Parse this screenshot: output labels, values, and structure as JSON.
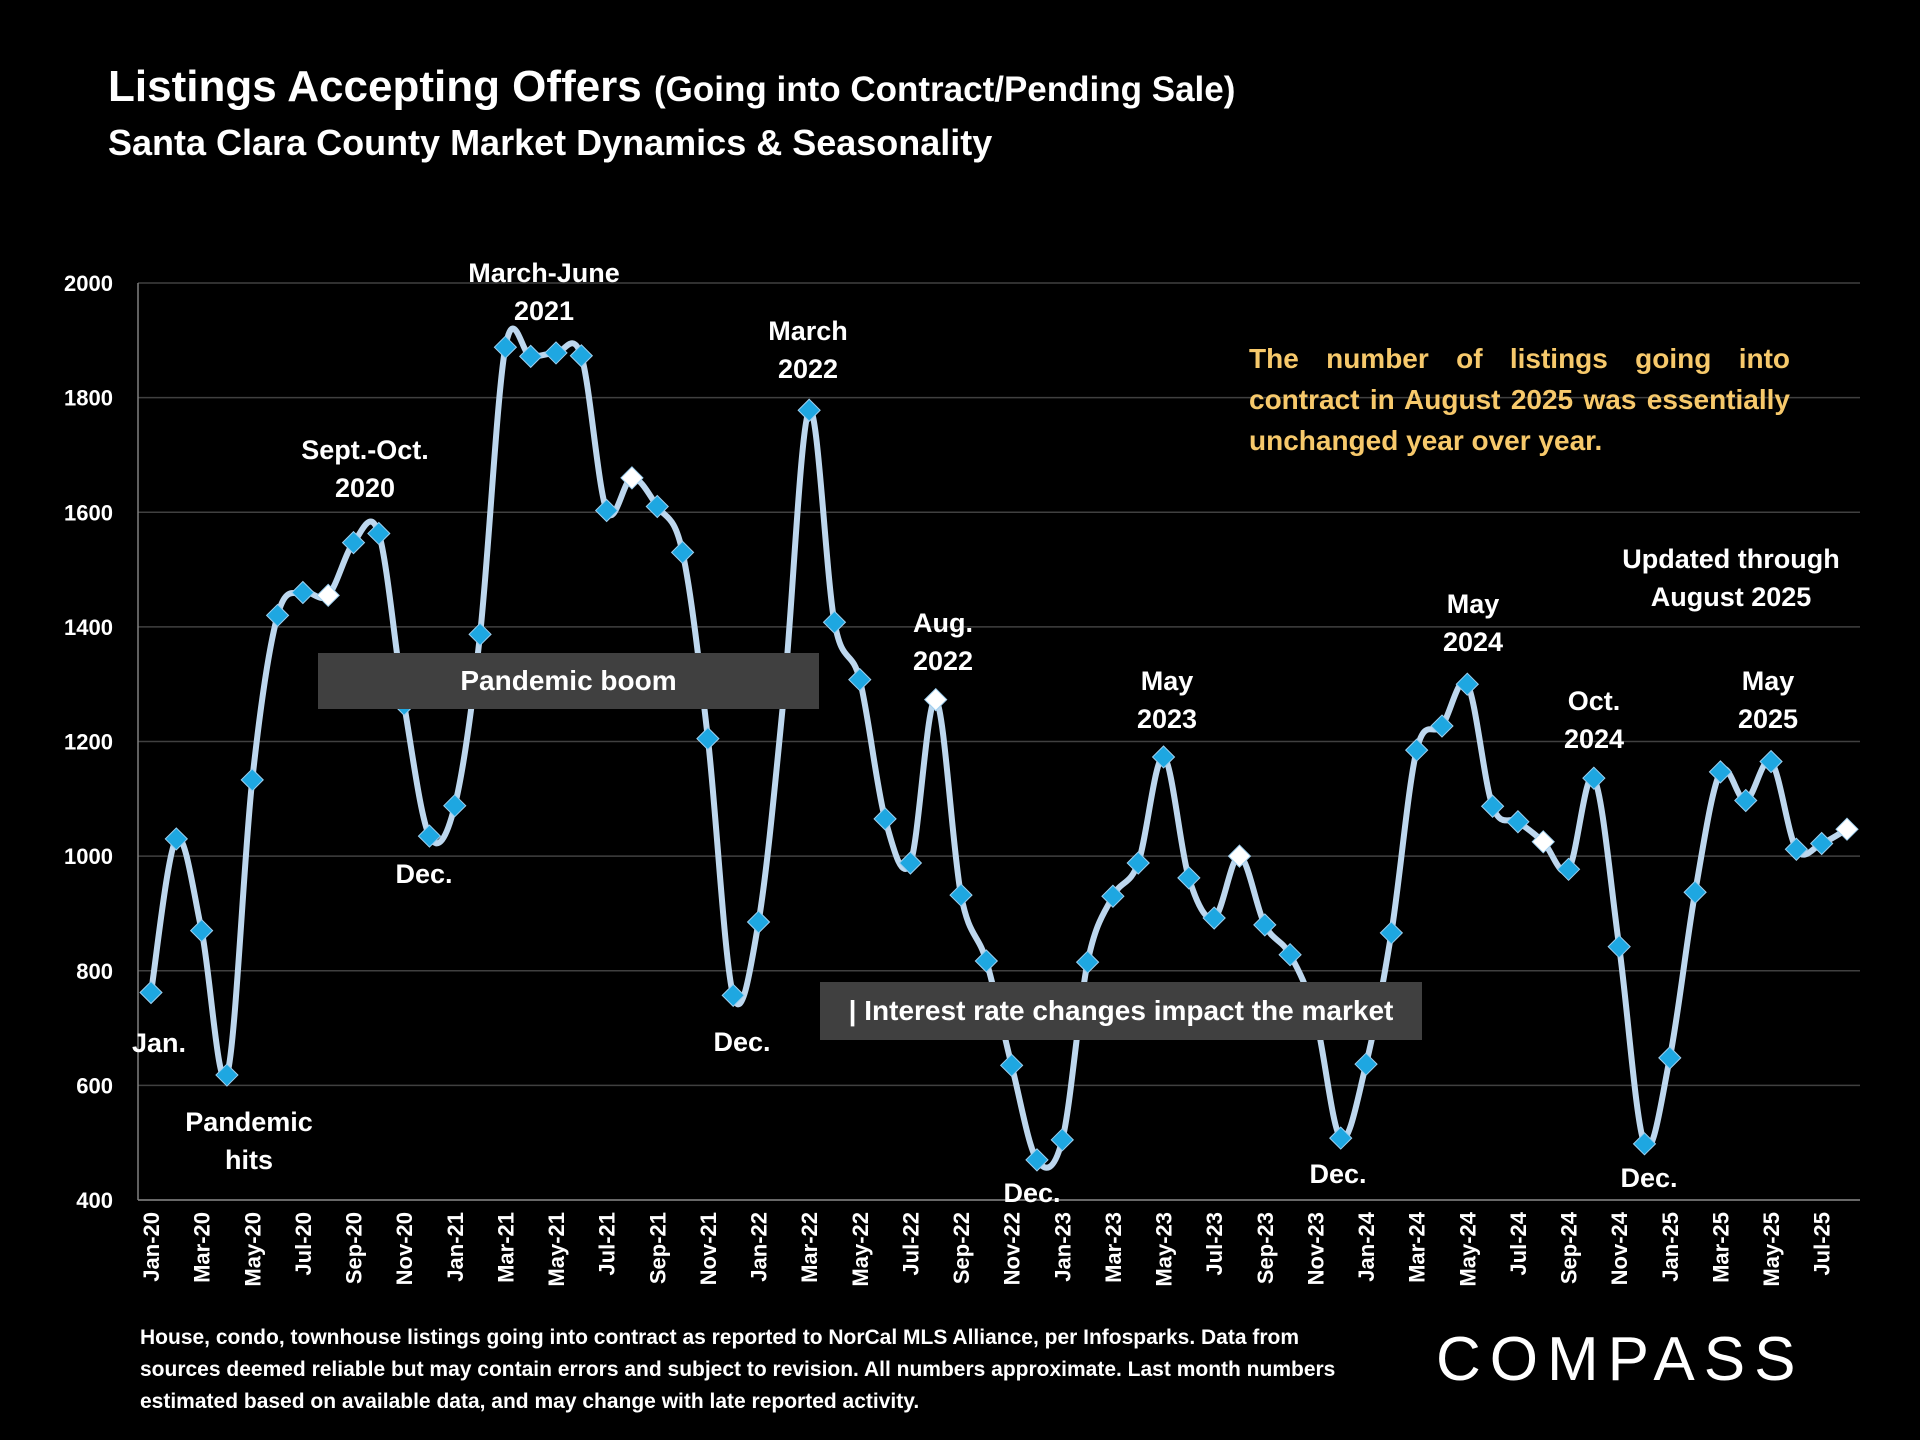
{
  "header": {
    "title": "Listings Accepting Offers",
    "title_suffix": "(Going into Contract/Pending Sale)",
    "subtitle": "Santa Clara County Market Dynamics & Seasonality"
  },
  "chart_data": {
    "type": "line",
    "title": "Listings Accepting Offers (Going into Contract/Pending Sale)",
    "subtitle": "Santa Clara County Market Dynamics & Seasonality",
    "xlabel": "",
    "ylabel": "",
    "ylim": [
      400,
      2000
    ],
    "yticks": [
      400,
      600,
      800,
      1000,
      1200,
      1400,
      1600,
      1800,
      2000
    ],
    "grid": true,
    "smooth": true,
    "colors": {
      "line": "#bdd7ee",
      "marker": "#1ea7e1",
      "highlight_marker": "#ffffff",
      "grid": "#404040",
      "note": "#f7c96b"
    },
    "x": [
      "Jan-20",
      "Feb-20",
      "Mar-20",
      "Apr-20",
      "May-20",
      "Jun-20",
      "Jul-20",
      "Aug-20",
      "Sep-20",
      "Oct-20",
      "Nov-20",
      "Dec-20",
      "Jan-21",
      "Feb-21",
      "Mar-21",
      "Apr-21",
      "May-21",
      "Jun-21",
      "Jul-21",
      "Aug-21",
      "Sep-21",
      "Oct-21",
      "Nov-21",
      "Dec-21",
      "Jan-22",
      "Feb-22",
      "Mar-22",
      "Apr-22",
      "May-22",
      "Jun-22",
      "Jul-22",
      "Aug-22",
      "Sep-22",
      "Oct-22",
      "Nov-22",
      "Dec-22",
      "Jan-23",
      "Feb-23",
      "Mar-23",
      "Apr-23",
      "May-23",
      "Jun-23",
      "Jul-23",
      "Aug-23",
      "Sep-23",
      "Oct-23",
      "Nov-23",
      "Dec-23",
      "Jan-24",
      "Feb-24",
      "Mar-24",
      "Apr-24",
      "May-24",
      "Jun-24",
      "Jul-24",
      "Aug-24",
      "Sep-24",
      "Oct-24",
      "Nov-24",
      "Dec-24",
      "Jan-25",
      "Feb-25",
      "Mar-25",
      "Apr-25",
      "May-25",
      "Jun-25",
      "Jul-25",
      "Aug-25"
    ],
    "xtick_labels": [
      "Jan-20",
      "Mar-20",
      "May-20",
      "Jul-20",
      "Sep-20",
      "Nov-20",
      "Jan-21",
      "Mar-21",
      "May-21",
      "Jul-21",
      "Sep-21",
      "Nov-21",
      "Jan-22",
      "Mar-22",
      "May-22",
      "Jul-22",
      "Sep-22",
      "Nov-22",
      "Jan-23",
      "Mar-23",
      "May-23",
      "Jul-23",
      "Sep-23",
      "Nov-23",
      "Jan-24",
      "Mar-24",
      "May-24",
      "Jul-24",
      "Sep-24",
      "Nov-24",
      "Jan-25",
      "Mar-25",
      "May-25",
      "Jul-25"
    ],
    "values": [
      762,
      1030,
      870,
      618,
      1133,
      1420,
      1460,
      1455,
      1547,
      1563,
      1265,
      1035,
      1088,
      1387,
      1888,
      1872,
      1878,
      1873,
      1603,
      1660,
      1610,
      1530,
      1205,
      757,
      885,
      1280,
      1778,
      1408,
      1308,
      1065,
      988,
      1273,
      932,
      817,
      635,
      470,
      505,
      815,
      930,
      988,
      1173,
      962,
      892,
      1000,
      880,
      828,
      720,
      508,
      637,
      866,
      1185,
      1227,
      1300,
      1087,
      1060,
      1025,
      977,
      1136,
      842,
      498,
      648,
      937,
      1147,
      1097,
      1165,
      1012,
      1022,
      1047
    ],
    "highlight_months": [
      "Aug-20",
      "Aug-21",
      "Aug-22",
      "Aug-23",
      "Aug-24",
      "Aug-25"
    ],
    "annotations": {
      "march_june_2021": "March-June\n2021",
      "sept_oct_2020": "Sept.-Oct.\n2020",
      "march_2022": "March\n2022",
      "aug_2022": "Aug.\n2022",
      "may_2023": "May\n2023",
      "may_2024": "May\n2024",
      "oct_2024": "Oct.\n2024",
      "may_2025": "May\n2025",
      "updated": "Updated through\nAugust 2025",
      "jan": "Jan.",
      "pandemic_hits": "Pandemic\nhits",
      "dec_2020": "Dec.",
      "dec_2021": "Dec.",
      "dec_2022": "Dec.",
      "dec_2023": "Dec.",
      "dec_2024": "Dec.",
      "pandemic_boom": "Pandemic boom",
      "interest_rate": "| Interest rate changes impact the market",
      "note": "The number of listings going into contract in August 2025 was essentially unchanged year over year."
    }
  },
  "footer": {
    "text": "House, condo, townhouse listings going into contract as reported to NorCal MLS Alliance, per Infosparks. Data from sources deemed reliable but may contain errors and subject to revision. All numbers approximate. Last month numbers estimated based on available data, and may change with late reported activity."
  },
  "logo": {
    "text": "COMPASS"
  }
}
